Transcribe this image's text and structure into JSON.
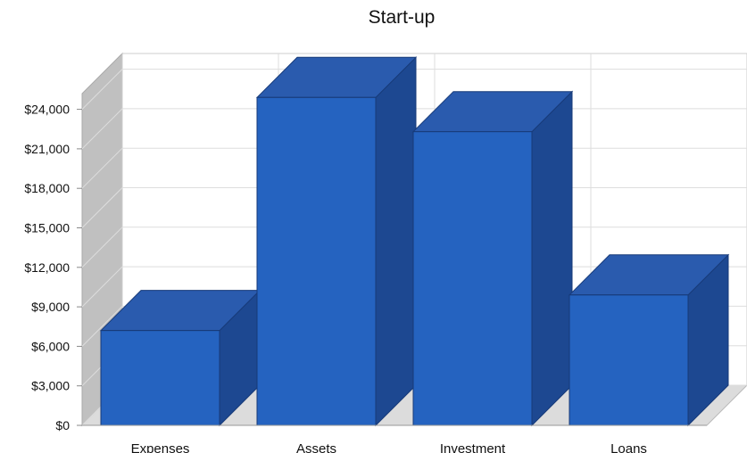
{
  "chart_data": {
    "type": "bar",
    "title": "Start-up",
    "categories": [
      "Expenses",
      "Assets",
      "Investment",
      "Loans"
    ],
    "values": [
      7200,
      24900,
      22300,
      9900
    ],
    "y_ticks": [
      "$0",
      "$3,000",
      "$6,000",
      "$9,000",
      "$12,000",
      "$15,000",
      "$18,000",
      "$21,000",
      "$24,000"
    ],
    "ylim": [
      0,
      24000
    ],
    "grid": true,
    "three_d": true,
    "colors": {
      "bar_front": "#2563C0",
      "bar_top": "#2A5BAE",
      "bar_side": "#1D4891",
      "back_wall": "#C0C0C0",
      "floor": "#DCDCDC",
      "grid": "#DDDDDD"
    }
  }
}
